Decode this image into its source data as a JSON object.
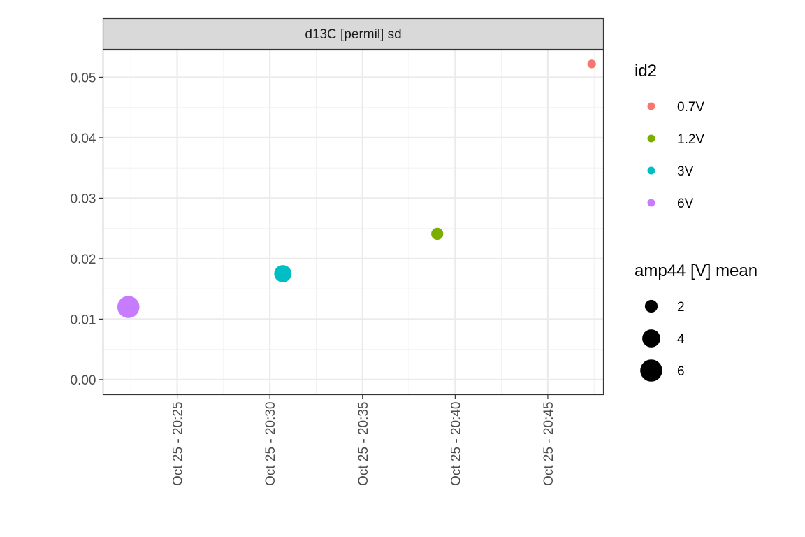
{
  "chart_data": {
    "type": "scatter",
    "facet_label": "d13C [permil] sd",
    "x_axis": {
      "type": "datetime",
      "ticks": [
        "Oct 25 - 20:25",
        "Oct 25 - 20:30",
        "Oct 25 - 20:35",
        "Oct 25 - 20:40",
        "Oct 25 - 20:45"
      ],
      "range": [
        "Oct 25 - 20:21",
        "Oct 25 - 20:48"
      ]
    },
    "y_axis": {
      "ticks": [
        "0.00",
        "0.01",
        "0.02",
        "0.03",
        "0.04",
        "0.05"
      ],
      "range": [
        -0.0025,
        0.0545
      ]
    },
    "grid": true,
    "points": [
      {
        "x": "Oct 25 - 20:22:22",
        "y": 0.012,
        "id2": "6V",
        "amp44_mean": 6.0
      },
      {
        "x": "Oct 25 - 20:30:42",
        "y": 0.0175,
        "id2": "3V",
        "amp44_mean": 3.7
      },
      {
        "x": "Oct 25 - 20:39:02",
        "y": 0.0241,
        "id2": "1.2V",
        "amp44_mean": 1.8
      },
      {
        "x": "Oct 25 - 20:47:22",
        "y": 0.0522,
        "id2": "0.7V",
        "amp44_mean": 0.9
      }
    ],
    "legend": {
      "placement": "right",
      "color": {
        "title": "id2",
        "entries": [
          {
            "label": "0.7V",
            "color": "#F8766D"
          },
          {
            "label": "1.2V",
            "color": "#7CAE00"
          },
          {
            "label": "3V",
            "color": "#00BFC4"
          },
          {
            "label": "6V",
            "color": "#C77CFF"
          }
        ]
      },
      "size": {
        "title": "amp44 [V] mean",
        "entries": [
          {
            "label": "2",
            "value": 2
          },
          {
            "label": "4",
            "value": 4
          },
          {
            "label": "6",
            "value": 6
          }
        ]
      }
    }
  }
}
